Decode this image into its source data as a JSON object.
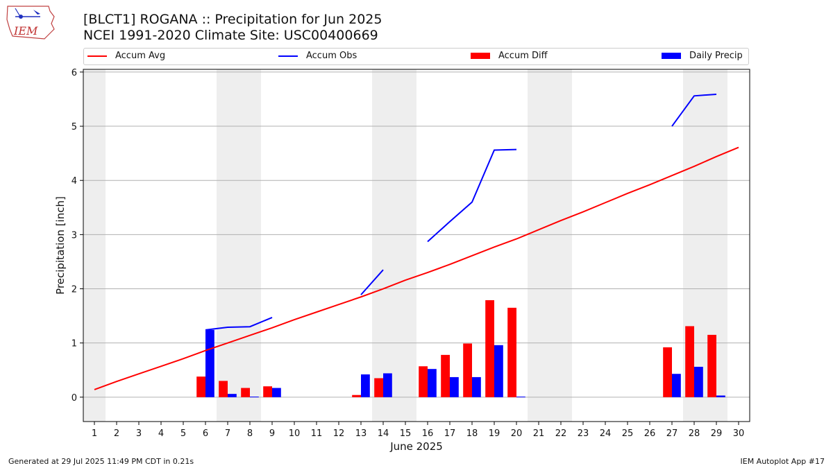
{
  "header": {
    "title_line1": "[BLCT1] ROGANA :: Precipitation for Jun 2025",
    "title_line2": "NCEI 1991-2020 Climate Site: USC00400669"
  },
  "logo": {
    "text": "IEM"
  },
  "footer": {
    "left": "Generated at 29 Jul 2025 11:49 PM CDT in 0.21s",
    "right": "IEM Autoplot App #17"
  },
  "colors": {
    "avg": "#ff0000",
    "obs": "#0000ff",
    "diff": "#ff0000",
    "daily": "#0000ff",
    "weekend_shade": "#eeeeee",
    "grid": "#b0b0b0"
  },
  "chart_data": {
    "type": "bar",
    "xlabel": "June 2025",
    "ylabel": "Precipitation [inch]",
    "ylim": [
      -0.45,
      6.05
    ],
    "xlim": [
      0.5,
      30.5
    ],
    "yticks": [
      0,
      1,
      2,
      3,
      4,
      5,
      6
    ],
    "grid": true,
    "legend_position": "top",
    "days": [
      1,
      2,
      3,
      4,
      5,
      6,
      7,
      8,
      9,
      10,
      11,
      12,
      13,
      14,
      15,
      16,
      17,
      18,
      19,
      20,
      21,
      22,
      23,
      24,
      25,
      26,
      27,
      28,
      29,
      30
    ],
    "shaded_days": [
      1,
      7,
      8,
      14,
      15,
      21,
      22,
      28,
      29
    ],
    "series": [
      {
        "name": "Accum Avg",
        "kind": "line",
        "x": [
          1,
          2,
          3,
          4,
          5,
          6,
          7,
          8,
          9,
          10,
          11,
          12,
          13,
          14,
          15,
          16,
          17,
          18,
          19,
          20,
          21,
          22,
          23,
          24,
          25,
          26,
          27,
          28,
          29,
          30
        ],
        "values": [
          0.14,
          0.29,
          0.43,
          0.57,
          0.71,
          0.86,
          1.0,
          1.14,
          1.28,
          1.43,
          1.57,
          1.71,
          1.85,
          2.0,
          2.16,
          2.3,
          2.45,
          2.61,
          2.77,
          2.92,
          3.09,
          3.26,
          3.42,
          3.59,
          3.76,
          3.92,
          4.09,
          4.26,
          4.44,
          4.61
        ]
      },
      {
        "name": "Accum Obs",
        "kind": "line",
        "segments": [
          {
            "x": [
              6,
              7,
              8,
              9
            ],
            "values": [
              1.24,
              1.29,
              1.3,
              1.47
            ]
          },
          {
            "x": [
              13,
              14
            ],
            "values": [
              1.89,
              2.35
            ]
          },
          {
            "x": [
              16,
              17,
              18,
              19,
              20
            ],
            "values": [
              2.87,
              3.24,
              3.6,
              4.56,
              4.57
            ]
          },
          {
            "x": [
              27,
              28,
              29
            ],
            "values": [
              5.0,
              5.56,
              5.59
            ]
          }
        ]
      },
      {
        "name": "Accum Diff",
        "kind": "bar",
        "x": [
          6,
          7,
          8,
          9,
          13,
          14,
          16,
          17,
          18,
          19,
          20,
          27,
          28,
          29
        ],
        "values": [
          0.38,
          0.3,
          0.17,
          0.2,
          0.04,
          0.35,
          0.57,
          0.78,
          0.99,
          1.79,
          1.65,
          0.92,
          1.31,
          1.15
        ]
      },
      {
        "name": "Daily Precip",
        "kind": "bar",
        "x": [
          6,
          7,
          8,
          9,
          13,
          14,
          16,
          17,
          18,
          19,
          20,
          27,
          28,
          29
        ],
        "values": [
          1.24,
          0.06,
          0.01,
          0.17,
          0.42,
          0.44,
          0.52,
          0.37,
          0.37,
          0.96,
          0.01,
          0.43,
          0.56,
          0.03
        ]
      }
    ]
  }
}
